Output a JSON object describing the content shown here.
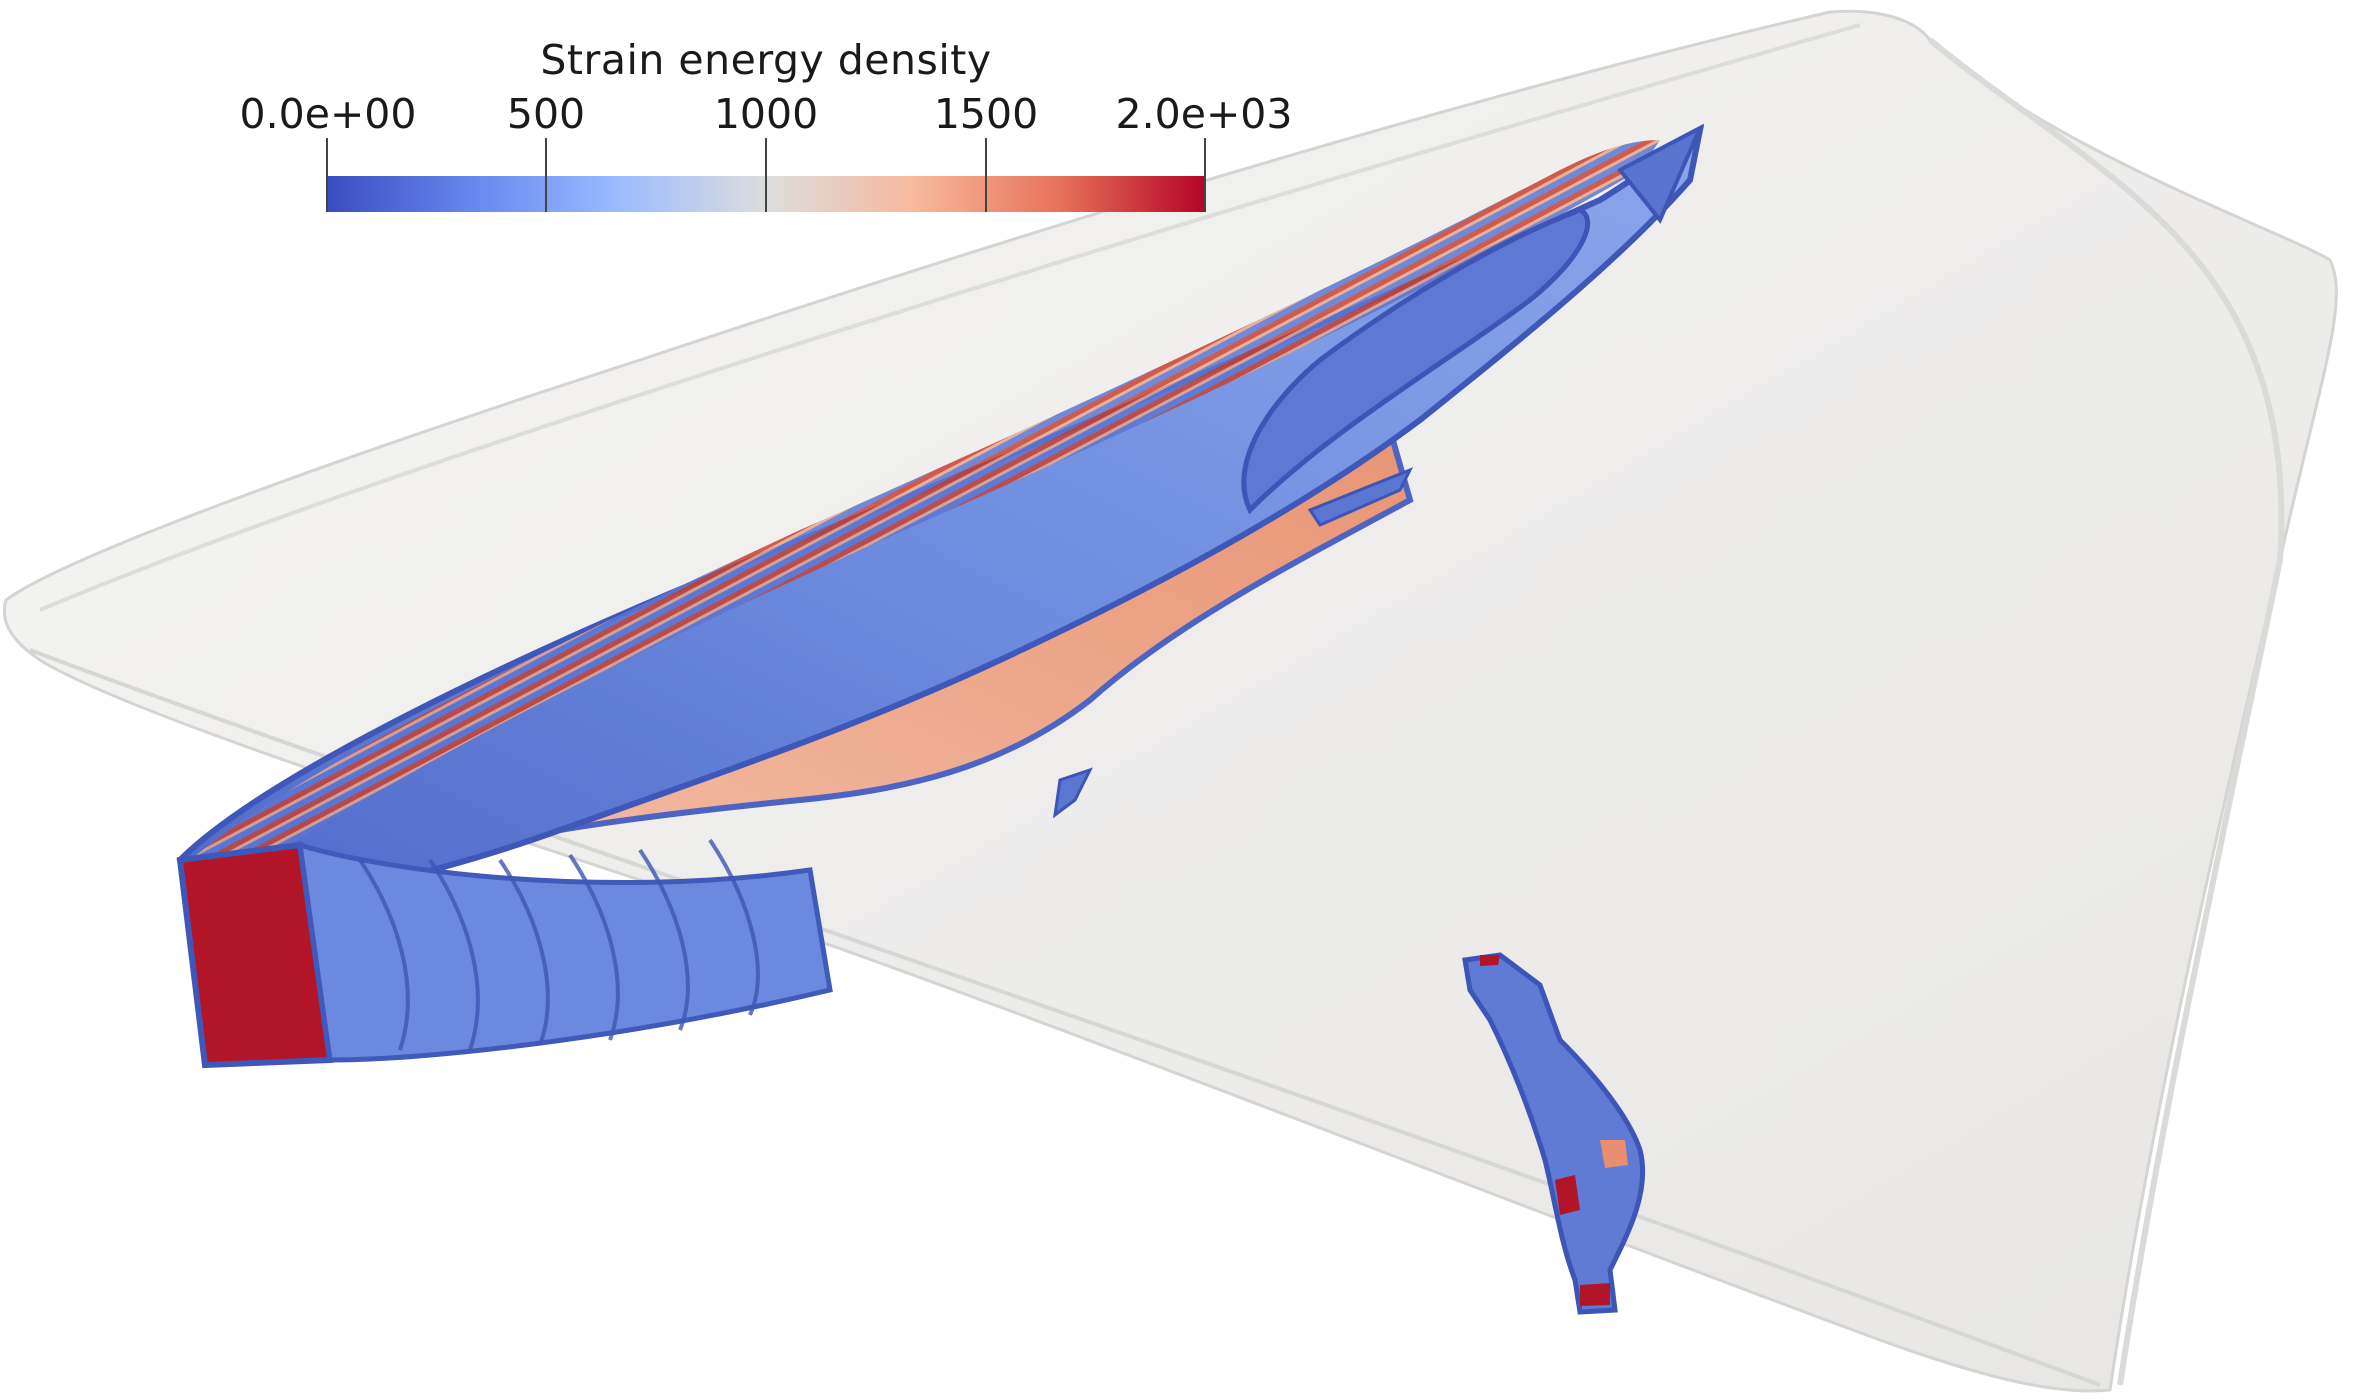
{
  "image": {
    "subject": "",
    "description": ""
  },
  "colorbar": {
    "title": "Strain energy density",
    "ticks": [
      "0.0e+00",
      "500",
      "1000",
      "1500",
      "2.0e+03"
    ],
    "range": [
      0,
      2000
    ],
    "colormap": [
      "#3b4cc0",
      "#7396f5",
      "#b0cbfc",
      "#dcdddd",
      "#f6bfa6",
      "#ea7b60",
      "#b40426"
    ]
  },
  "colors": {
    "shell": "#ededeb",
    "shell_edge": "#cfcfcd",
    "low": "#4a66c9",
    "mid_low": "#8ea9e8",
    "mid": "#d9d6d4",
    "mid_high": "#eea283",
    "high": "#b10f24"
  }
}
